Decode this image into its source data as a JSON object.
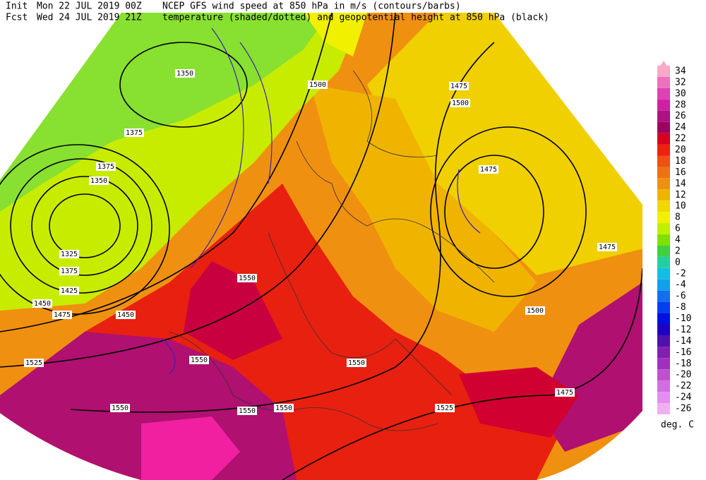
{
  "header": {
    "init_label": "Init",
    "init_time": "Mon 22 JUL 2019 00Z",
    "fcst_label": "Fcst",
    "fcst_time": "Wed 24 JUL 2019 21Z",
    "line1": "NCEP GFS wind speed at 850 hPa in m/s (contours/barbs)",
    "line2": "temperature (shaded/dotted) and geopotential height at 850 hPa (black)"
  },
  "colorbar": {
    "ticks": [
      34,
      32,
      30,
      28,
      26,
      24,
      22,
      20,
      18,
      16,
      14,
      12,
      10,
      8,
      6,
      4,
      2,
      0,
      -2,
      -4,
      -6,
      -8,
      -10,
      -12,
      -14,
      -16,
      -18,
      -20,
      -22,
      -24,
      -26
    ],
    "colors": [
      "#f8a8c8",
      "#f070c0",
      "#e040b0",
      "#d020a0",
      "#b01080",
      "#a00060",
      "#d80020",
      "#f02010",
      "#f05010",
      "#f07010",
      "#f09010",
      "#f0b400",
      "#f0d800",
      "#f0f000",
      "#c0f000",
      "#80e000",
      "#40d040",
      "#20d0a0",
      "#10c0e0",
      "#10a0f0",
      "#1070f0",
      "#0040f0",
      "#0010e0",
      "#2000c0",
      "#5010b0",
      "#8020b0",
      "#a030c0",
      "#c050d0",
      "#d070e0",
      "#e090f0",
      "#f0b0f0"
    ],
    "unit": "deg. C"
  },
  "map": {
    "contour_labels": [
      "1350",
      "1375",
      "1375",
      "1350",
      "1325",
      "1375",
      "1425",
      "1450",
      "1475",
      "1450",
      "1525",
      "1550",
      "1550",
      "1550",
      "1550",
      "1550",
      "1550",
      "1500",
      "1475",
      "1500",
      "1475",
      "1475",
      "1500",
      "1525",
      "1475"
    ]
  }
}
